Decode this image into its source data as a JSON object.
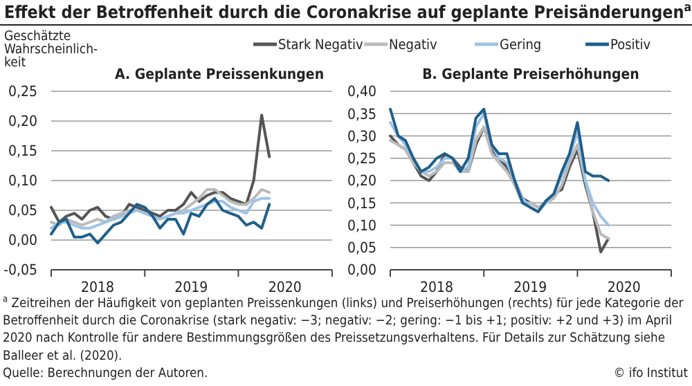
{
  "chart_data": [
    {
      "type": "line",
      "title": "Effekt der Betroffenheit durch die Coronakrise auf geplante Preisänderungen$^{a}$",
      "subtitle": "A. Geplante Preissenkungen",
      "ylabel": "Geschätzte Wahrscheinlich-keit",
      "x": [
        "2018-01",
        "2018-02",
        "2018-03",
        "2018-04",
        "2018-05",
        "2018-06",
        "2018-07",
        "2018-08",
        "2018-09",
        "2018-10",
        "2018-11",
        "2018-12",
        "2019-01",
        "2019-02",
        "2019-03",
        "2019-04",
        "2019-05",
        "2019-06",
        "2019-07",
        "2019-08",
        "2019-09",
        "2019-10",
        "2019-11",
        "2019-12",
        "2020-01",
        "2020-02",
        "2020-03",
        "2020-04",
        "2020-05"
      ],
      "series": [
        {
          "color": "#555555",
          "values": [
            0.055,
            0.03,
            0.04,
            0.045,
            0.035,
            0.05,
            0.055,
            0.04,
            0.035,
            0.04,
            0.06,
            0.055,
            0.05,
            0.045,
            0.04,
            0.05,
            0.05,
            0.06,
            0.08,
            0.065,
            0.075,
            0.08,
            0.08,
            0.07,
            0.065,
            0.06,
            0.1,
            0.21,
            0.14
          ]
        },
        {
          "color": "#bbbbbb",
          "values": [
            0.03,
            0.025,
            0.035,
            0.03,
            0.025,
            0.03,
            0.035,
            0.03,
            0.04,
            0.045,
            0.05,
            0.05,
            0.045,
            0.04,
            0.035,
            0.04,
            0.045,
            0.05,
            0.06,
            0.07,
            0.085,
            0.085,
            0.075,
            0.065,
            0.06,
            0.06,
            0.07,
            0.085,
            0.08
          ]
        },
        {
          "color": "#9dc3e6",
          "values": [
            0.02,
            0.03,
            0.03,
            0.025,
            0.02,
            0.02,
            0.025,
            0.03,
            0.035,
            0.04,
            0.045,
            0.05,
            0.045,
            0.04,
            0.035,
            0.04,
            0.045,
            0.045,
            0.05,
            0.055,
            0.06,
            0.065,
            0.065,
            0.055,
            0.05,
            0.045,
            0.065,
            0.07,
            0.07
          ]
        },
        {
          "color": "#1f5f8b",
          "values": [
            0.01,
            0.03,
            0.035,
            0.005,
            0.005,
            0.01,
            -0.005,
            0.01,
            0.025,
            0.03,
            0.045,
            0.06,
            0.055,
            0.04,
            0.02,
            0.035,
            0.035,
            0.01,
            0.045,
            0.04,
            0.06,
            0.07,
            0.05,
            0.045,
            0.04,
            0.025,
            0.03,
            0.02,
            0.06
          ]
        }
      ],
      "xlim": [
        "2018-01",
        "2021-01"
      ],
      "xticks": [
        {
          "value": "2018-01",
          "label": null
        },
        {
          "value": "2018-07",
          "label": "2018"
        },
        {
          "value": "2019-01",
          "label": null
        },
        {
          "value": "2019-07",
          "label": "2019"
        },
        {
          "value": "2020-01",
          "label": null
        },
        {
          "value": "2020-07",
          "label": "2020"
        },
        {
          "value": "2021-01",
          "label": null
        }
      ],
      "ylim": [
        -0.05,
        0.25
      ],
      "yticks": [
        {
          "value": -0.05,
          "label": "-0,05"
        },
        {
          "value": 0,
          "label": "0,00"
        },
        {
          "value": 0.05,
          "label": "0,05"
        },
        {
          "value": 0.1,
          "label": "0,10"
        },
        {
          "value": 0.15,
          "label": "0,15"
        },
        {
          "value": 0.2,
          "label": "0,20"
        },
        {
          "value": 0.25,
          "label": "0,25"
        }
      ],
      "grid": "y",
      "legend": false
    },
    {
      "type": "line",
      "title": "B. Geplante Preiserhöhungen",
      "x": [
        "2018-01",
        "2018-02",
        "2018-03",
        "2018-04",
        "2018-05",
        "2018-06",
        "2018-07",
        "2018-08",
        "2018-09",
        "2018-10",
        "2018-11",
        "2018-12",
        "2019-01",
        "2019-02",
        "2019-03",
        "2019-04",
        "2019-05",
        "2019-06",
        "2019-07",
        "2019-08",
        "2019-09",
        "2019-10",
        "2019-11",
        "2019-12",
        "2020-01",
        "2020-02",
        "2020-03",
        "2020-04",
        "2020-05"
      ],
      "series": [
        {
          "name": "Stark Negativ",
          "color": "#555555",
          "values": [
            0.3,
            0.28,
            0.27,
            0.24,
            0.21,
            0.2,
            0.22,
            0.26,
            0.25,
            0.23,
            0.22,
            0.28,
            0.32,
            0.27,
            0.25,
            0.23,
            0.2,
            0.16,
            0.15,
            0.14,
            0.15,
            0.17,
            0.18,
            0.23,
            0.27,
            0.19,
            0.13,
            0.04,
            0.07
          ]
        },
        {
          "name": "Negativ",
          "color": "#bbbbbb",
          "values": [
            0.29,
            0.28,
            0.27,
            0.24,
            0.22,
            0.21,
            0.22,
            0.24,
            0.24,
            0.22,
            0.22,
            0.29,
            0.32,
            0.26,
            0.24,
            0.22,
            0.19,
            0.15,
            0.15,
            0.14,
            0.15,
            0.16,
            0.19,
            0.24,
            0.28,
            0.2,
            0.13,
            0.08,
            0.07
          ]
        },
        {
          "name": "Gering",
          "color": "#9dc3e6",
          "values": [
            0.33,
            0.3,
            0.28,
            0.25,
            0.22,
            0.22,
            0.23,
            0.25,
            0.25,
            0.22,
            0.23,
            0.32,
            0.35,
            0.28,
            0.25,
            0.24,
            0.2,
            0.16,
            0.14,
            0.13,
            0.15,
            0.17,
            0.21,
            0.25,
            0.31,
            0.2,
            0.15,
            0.12,
            0.1
          ]
        },
        {
          "name": "Positiv",
          "color": "#1f5f8b",
          "values": [
            0.36,
            0.3,
            0.29,
            0.25,
            0.22,
            0.23,
            0.25,
            0.26,
            0.25,
            0.22,
            0.25,
            0.34,
            0.36,
            0.28,
            0.26,
            0.26,
            0.2,
            0.15,
            0.14,
            0.13,
            0.155,
            0.17,
            0.22,
            0.26,
            0.33,
            0.22,
            0.21,
            0.21,
            0.2
          ]
        }
      ],
      "xlim": [
        "2018-01",
        "2021-01"
      ],
      "xticks": [
        {
          "value": "2018-01",
          "label": null
        },
        {
          "value": "2018-07",
          "label": "2018"
        },
        {
          "value": "2019-01",
          "label": null
        },
        {
          "value": "2019-07",
          "label": "2019"
        },
        {
          "value": "2020-01",
          "label": null
        },
        {
          "value": "2020-07",
          "label": "2020"
        },
        {
          "value": "2021-01",
          "label": null
        }
      ],
      "ylim": [
        0,
        0.4
      ],
      "yticks": [
        {
          "value": 0,
          "label": "0,00"
        },
        {
          "value": 0.05,
          "label": "0,05"
        },
        {
          "value": 0.1,
          "label": "0,10"
        },
        {
          "value": 0.15,
          "label": "0,15"
        },
        {
          "value": 0.2,
          "label": "0,20"
        },
        {
          "value": 0.25,
          "label": "0,25"
        },
        {
          "value": 0.3,
          "label": "0,30"
        },
        {
          "value": 0.35,
          "label": "0,35"
        },
        {
          "value": 0.4,
          "label": "0,40"
        }
      ],
      "grid": "y",
      "legend": "top",
      "annotations": [
        "$^{a}$ Zeitreihen der Häufigkeit von geplanten Preissenkungen (links) und Preiserhöhungen (rechts) für jede Kategorie der Betroffenheit durch die Coronakrise (stark negativ: −3; negativ: −2; gering: −1 bis +1; positiv: +2 und +3) im April 2020 nach Kontrolle für andere Bestimmungsgrößen des Preissetzungsverhaltens. Für Details zur Schätzung siehe Balleer et al. (2020).",
        "Quelle: Berechnungen der Autoren.",
        "© ifo Institut"
      ]
    }
  ]
}
